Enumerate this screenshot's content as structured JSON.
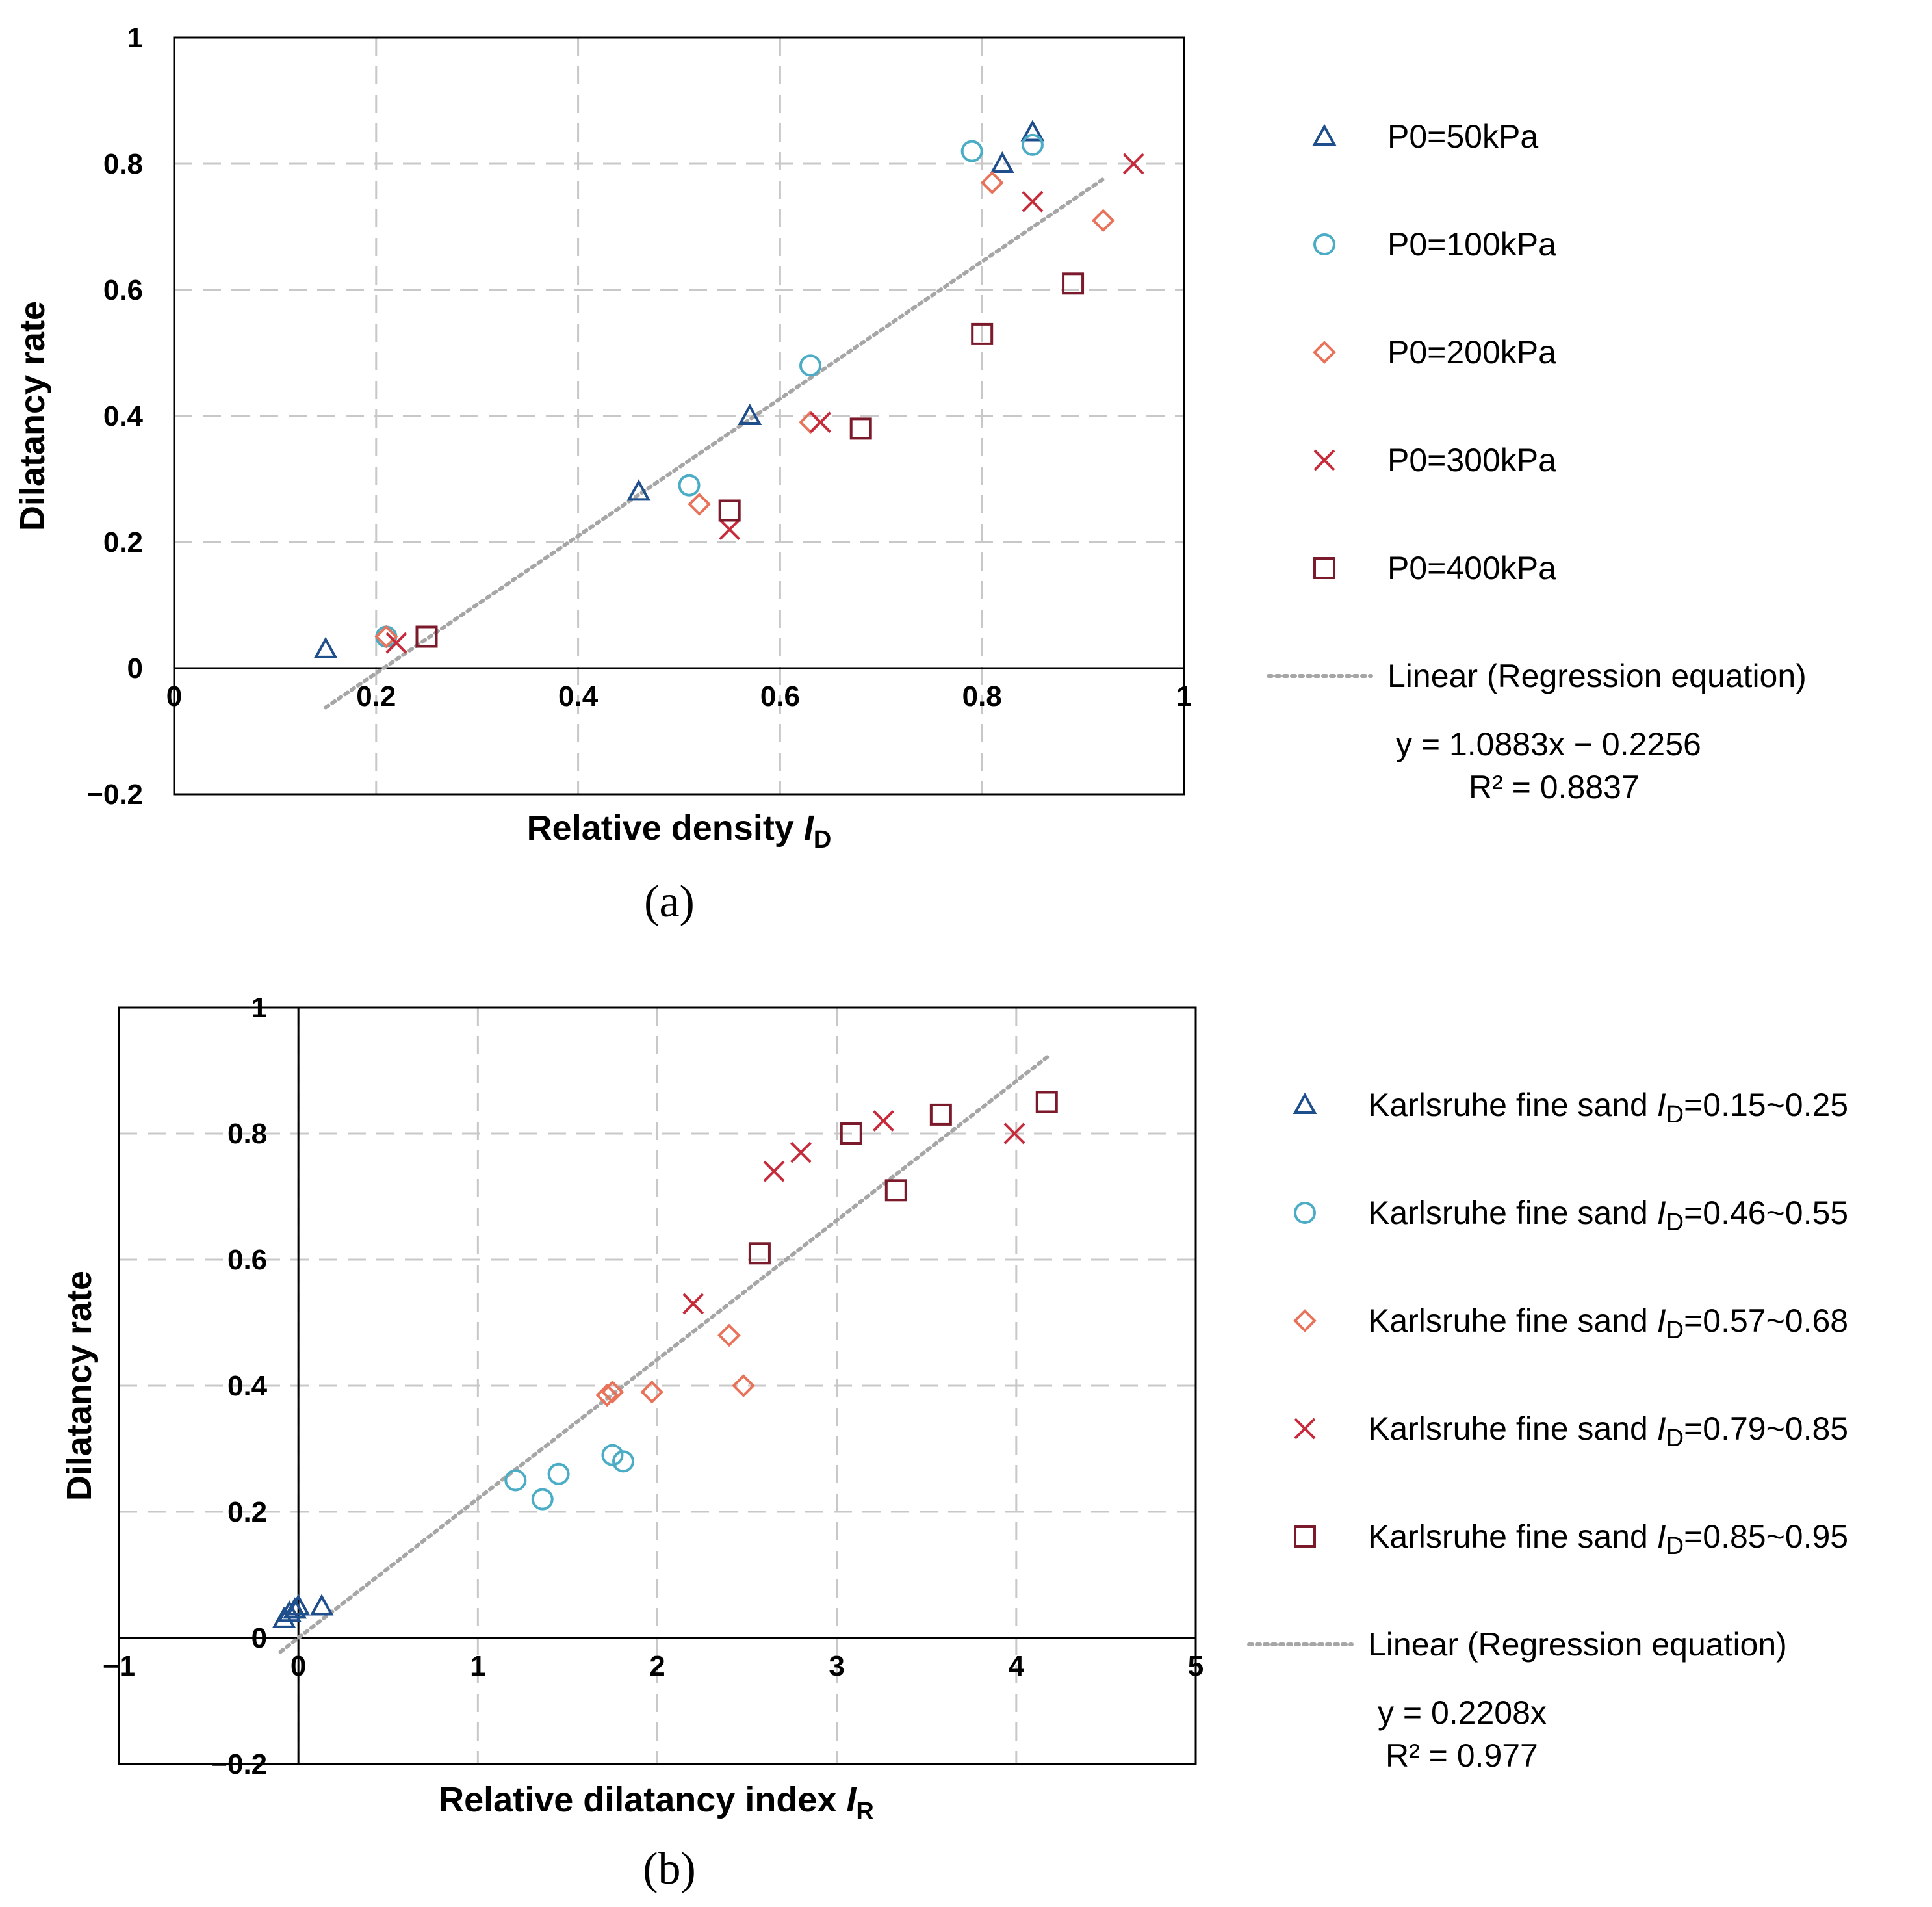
{
  "chart_data": [
    {
      "type": "scatter",
      "caption": "(a)",
      "xlabel": "Relative density ",
      "xlabel_italic": "I",
      "xlabel_sub": "D",
      "ylabel": "Dilatancy rate",
      "xlim": [
        0,
        1
      ],
      "ylim": [
        -0.2,
        1
      ],
      "xticks": [
        0,
        0.2,
        0.4,
        0.6,
        0.8,
        1
      ],
      "xtick_labels": [
        "0",
        "0.2",
        "0.4",
        "0.6",
        "0.8",
        "1"
      ],
      "yticks": [
        -0.2,
        0,
        0.2,
        0.4,
        0.6,
        0.8,
        1
      ],
      "ytick_labels": [
        "−0.2",
        "0",
        "0.2",
        "0.4",
        "0.6",
        "0.8",
        "1"
      ],
      "grid": true,
      "legend_position": "right",
      "series": [
        {
          "name": "P0=50kPa",
          "marker": "triangle",
          "color": "#1f4e8c",
          "points": [
            [
              0.15,
              0.03
            ],
            [
              0.46,
              0.28
            ],
            [
              0.57,
              0.4
            ],
            [
              0.82,
              0.8
            ],
            [
              0.85,
              0.85
            ]
          ]
        },
        {
          "name": "P0=100kPa",
          "marker": "circle",
          "color": "#4bacc6",
          "points": [
            [
              0.21,
              0.05
            ],
            [
              0.51,
              0.29
            ],
            [
              0.63,
              0.48
            ],
            [
              0.79,
              0.82
            ],
            [
              0.85,
              0.83
            ]
          ]
        },
        {
          "name": "P0=200kPa",
          "marker": "diamond",
          "color": "#e8735a",
          "points": [
            [
              0.21,
              0.05
            ],
            [
              0.52,
              0.26
            ],
            [
              0.63,
              0.39
            ],
            [
              0.81,
              0.77
            ],
            [
              0.92,
              0.71
            ]
          ]
        },
        {
          "name": "P0=300kPa",
          "marker": "x",
          "color": "#c62b3b",
          "points": [
            [
              0.22,
              0.04
            ],
            [
              0.55,
              0.22
            ],
            [
              0.64,
              0.39
            ],
            [
              0.85,
              0.74
            ],
            [
              0.95,
              0.8
            ]
          ]
        },
        {
          "name": "P0=400kPa",
          "marker": "square",
          "color": "#7b1a2a",
          "points": [
            [
              0.25,
              0.05
            ],
            [
              0.55,
              0.25
            ],
            [
              0.68,
              0.38
            ],
            [
              0.8,
              0.53
            ],
            [
              0.89,
              0.61
            ]
          ]
        }
      ],
      "trendline": {
        "name": "Linear (Regression equation)",
        "slope": 1.0883,
        "intercept": -0.2256,
        "x_range": [
          0.15,
          0.92
        ]
      },
      "equation": "y = 1.0883x − 0.2256",
      "r_squared": "R² = 0.8837"
    },
    {
      "type": "scatter",
      "caption": "(b)",
      "xlabel": "Relative dilatancy index ",
      "xlabel_italic": "I",
      "xlabel_sub": "R",
      "ylabel": "Dilatancy rate",
      "xlim": [
        -1,
        5
      ],
      "ylim": [
        -0.2,
        1
      ],
      "xticks": [
        -1,
        0,
        1,
        2,
        3,
        4,
        5
      ],
      "xtick_labels": [
        "−1",
        "0",
        "1",
        "2",
        "3",
        "4",
        "5"
      ],
      "yticks": [
        -0.2,
        0,
        0.2,
        0.4,
        0.6,
        0.8,
        1
      ],
      "ytick_labels": [
        "−0.2",
        "0",
        "0.2",
        "0.4",
        "0.6",
        "0.8",
        "1"
      ],
      "grid": true,
      "legend_position": "right",
      "series": [
        {
          "name": "Karlsruhe fine sand ",
          "name_italic": "I",
          "name_sub": "D",
          "name_tail": "=0.15~0.25",
          "marker": "triangle",
          "color": "#1f4e8c",
          "points": [
            [
              -0.08,
              0.03
            ],
            [
              -0.05,
              0.04
            ],
            [
              -0.02,
              0.045
            ],
            [
              0.0,
              0.05
            ],
            [
              0.13,
              0.05
            ]
          ]
        },
        {
          "name": "Karlsruhe fine sand ",
          "name_italic": "I",
          "name_sub": "D",
          "name_tail": "=0.46~0.55",
          "marker": "circle",
          "color": "#4bacc6",
          "points": [
            [
              1.21,
              0.25
            ],
            [
              1.36,
              0.22
            ],
            [
              1.45,
              0.26
            ],
            [
              1.75,
              0.29
            ],
            [
              1.81,
              0.28
            ]
          ]
        },
        {
          "name": "Karlsruhe fine sand ",
          "name_italic": "I",
          "name_sub": "D",
          "name_tail": "=0.57~0.68",
          "marker": "diamond",
          "color": "#e8735a",
          "points": [
            [
              1.72,
              0.385
            ],
            [
              1.75,
              0.39
            ],
            [
              1.97,
              0.39
            ],
            [
              2.4,
              0.48
            ],
            [
              2.48,
              0.4
            ]
          ]
        },
        {
          "name": "Karlsruhe fine sand ",
          "name_italic": "I",
          "name_sub": "D",
          "name_tail": "=0.79~0.85",
          "marker": "x",
          "color": "#c62b3b",
          "points": [
            [
              2.2,
              0.53
            ],
            [
              2.65,
              0.74
            ],
            [
              2.8,
              0.77
            ],
            [
              3.26,
              0.82
            ],
            [
              3.99,
              0.8
            ]
          ]
        },
        {
          "name": "Karlsruhe fine sand ",
          "name_italic": "I",
          "name_sub": "D",
          "name_tail": "=0.85~0.95",
          "marker": "square",
          "color": "#7b1a2a",
          "points": [
            [
              2.57,
              0.61
            ],
            [
              3.08,
              0.8
            ],
            [
              3.33,
              0.71
            ],
            [
              3.58,
              0.83
            ],
            [
              4.17,
              0.85
            ]
          ]
        }
      ],
      "trendline": {
        "name": "Linear (Regression equation)",
        "slope": 0.2208,
        "intercept": 0,
        "x_range": [
          -0.1,
          4.18
        ]
      },
      "equation": "y = 0.2208x",
      "r_squared": "R² = 0.977"
    }
  ]
}
